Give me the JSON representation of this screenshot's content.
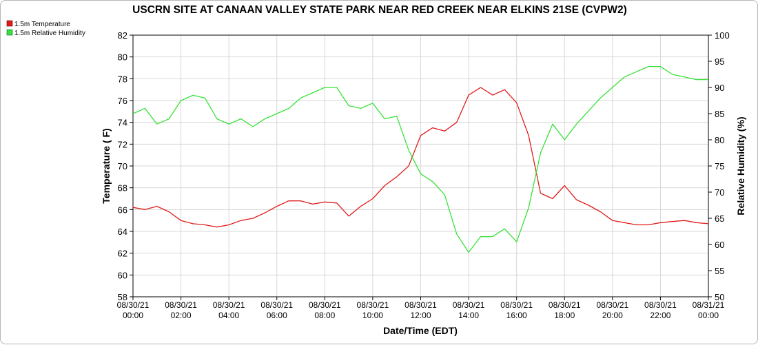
{
  "chart_data": {
    "type": "line",
    "title": "USCRN SITE AT CANAAN VALLEY STATE PARK NEAR RED CREEK NEAR ELKINS 21SE (CVPW2)",
    "xlabel": "Date/Time (EDT)",
    "ylabel_left": "Temperature ( F)",
    "ylabel_right": "Relative Humidity (%)",
    "ylim_left": [
      58,
      82
    ],
    "ylim_right": [
      50,
      100
    ],
    "yticks_left": [
      "58",
      "60",
      "62",
      "64",
      "66",
      "68",
      "70",
      "72",
      "74",
      "76",
      "78",
      "80",
      "82"
    ],
    "yticks_right": [
      "50",
      "55",
      "60",
      "65",
      "70",
      "75",
      "80",
      "85",
      "90",
      "95",
      "100"
    ],
    "xticks": [
      {
        "date": "08/30/21",
        "time": "00:00"
      },
      {
        "date": "08/30/21",
        "time": "02:00"
      },
      {
        "date": "08/30/21",
        "time": "04:00"
      },
      {
        "date": "08/30/21",
        "time": "06:00"
      },
      {
        "date": "08/30/21",
        "time": "08:00"
      },
      {
        "date": "08/30/21",
        "time": "10:00"
      },
      {
        "date": "08/30/21",
        "time": "12:00"
      },
      {
        "date": "08/30/21",
        "time": "14:00"
      },
      {
        "date": "08/30/21",
        "time": "16:00"
      },
      {
        "date": "08/30/21",
        "time": "18:00"
      },
      {
        "date": "08/30/21",
        "time": "20:00"
      },
      {
        "date": "08/30/21",
        "time": "22:00"
      },
      {
        "date": "08/31/21",
        "time": "00:00"
      }
    ],
    "grid": true,
    "legend_position": "top-left",
    "series": [
      {
        "name": "1.5m Temperature",
        "color": "#e11b1b",
        "axis": "left",
        "x": [
          "08/30/21 00:00",
          "08/30/21 00:30",
          "08/30/21 01:00",
          "08/30/21 01:30",
          "08/30/21 02:00",
          "08/30/21 02:30",
          "08/30/21 03:00",
          "08/30/21 03:30",
          "08/30/21 04:00",
          "08/30/21 04:30",
          "08/30/21 05:00",
          "08/30/21 05:30",
          "08/30/21 06:00",
          "08/30/21 06:30",
          "08/30/21 07:00",
          "08/30/21 07:30",
          "08/30/21 08:00",
          "08/30/21 08:30",
          "08/30/21 09:00",
          "08/30/21 09:30",
          "08/30/21 10:00",
          "08/30/21 10:30",
          "08/30/21 11:00",
          "08/30/21 11:30",
          "08/30/21 12:00",
          "08/30/21 12:30",
          "08/30/21 13:00",
          "08/30/21 13:30",
          "08/30/21 14:00",
          "08/30/21 14:30",
          "08/30/21 15:00",
          "08/30/21 15:30",
          "08/30/21 16:00",
          "08/30/21 16:30",
          "08/30/21 17:00",
          "08/30/21 17:30",
          "08/30/21 18:00",
          "08/30/21 18:30",
          "08/30/21 19:00",
          "08/30/21 19:30",
          "08/30/21 20:00",
          "08/30/21 20:30",
          "08/30/21 21:00",
          "08/30/21 21:30",
          "08/30/21 22:00",
          "08/30/21 22:30",
          "08/30/21 23:00",
          "08/30/21 23:30",
          "08/31/21 00:00"
        ],
        "values": [
          66.2,
          66.0,
          66.3,
          65.8,
          65.0,
          64.7,
          64.6,
          64.4,
          64.6,
          65.0,
          65.2,
          65.7,
          66.3,
          66.8,
          66.8,
          66.5,
          66.7,
          66.6,
          65.4,
          66.3,
          67.0,
          68.2,
          69.0,
          70.0,
          72.8,
          73.5,
          73.2,
          74.0,
          76.5,
          77.2,
          76.5,
          77.0,
          75.8,
          72.8,
          67.5,
          67.0,
          68.2,
          66.9,
          66.4,
          65.8,
          65.0,
          64.8,
          64.6,
          64.6,
          64.8,
          64.9,
          65.0,
          64.8,
          64.7
        ]
      },
      {
        "name": "1.5m Relative Humidity",
        "color": "#36e236",
        "axis": "right",
        "x": [
          "08/30/21 00:00",
          "08/30/21 00:30",
          "08/30/21 01:00",
          "08/30/21 01:30",
          "08/30/21 02:00",
          "08/30/21 02:30",
          "08/30/21 03:00",
          "08/30/21 03:30",
          "08/30/21 04:00",
          "08/30/21 04:30",
          "08/30/21 05:00",
          "08/30/21 05:30",
          "08/30/21 06:00",
          "08/30/21 06:30",
          "08/30/21 07:00",
          "08/30/21 07:30",
          "08/30/21 08:00",
          "08/30/21 08:30",
          "08/30/21 09:00",
          "08/30/21 09:30",
          "08/30/21 10:00",
          "08/30/21 10:30",
          "08/30/21 11:00",
          "08/30/21 11:30",
          "08/30/21 12:00",
          "08/30/21 12:30",
          "08/30/21 13:00",
          "08/30/21 13:30",
          "08/30/21 14:00",
          "08/30/21 14:30",
          "08/30/21 15:00",
          "08/30/21 15:30",
          "08/30/21 16:00",
          "08/30/21 16:30",
          "08/30/21 17:00",
          "08/30/21 17:30",
          "08/30/21 18:00",
          "08/30/21 18:30",
          "08/30/21 19:00",
          "08/30/21 19:30",
          "08/30/21 20:00",
          "08/30/21 20:30",
          "08/30/21 21:00",
          "08/30/21 21:30",
          "08/30/21 22:00",
          "08/30/21 22:30",
          "08/30/21 23:00",
          "08/30/21 23:30",
          "08/31/21 00:00"
        ],
        "values": [
          85.0,
          86.0,
          83.0,
          84.0,
          87.5,
          88.5,
          88.0,
          84.0,
          83.0,
          84.0,
          82.5,
          84.0,
          85.0,
          86.0,
          88.0,
          89.0,
          90.0,
          90.0,
          86.5,
          86.0,
          87.0,
          84.0,
          84.5,
          78.0,
          73.5,
          72.0,
          69.5,
          62.0,
          58.5,
          61.5,
          61.5,
          63.0,
          60.5,
          67.0,
          77.5,
          83.0,
          80.0,
          83.0,
          85.5,
          88.0,
          90.0,
          92.0,
          93.0,
          94.0,
          94.0,
          92.5,
          92.0,
          91.5,
          91.5
        ]
      }
    ]
  }
}
